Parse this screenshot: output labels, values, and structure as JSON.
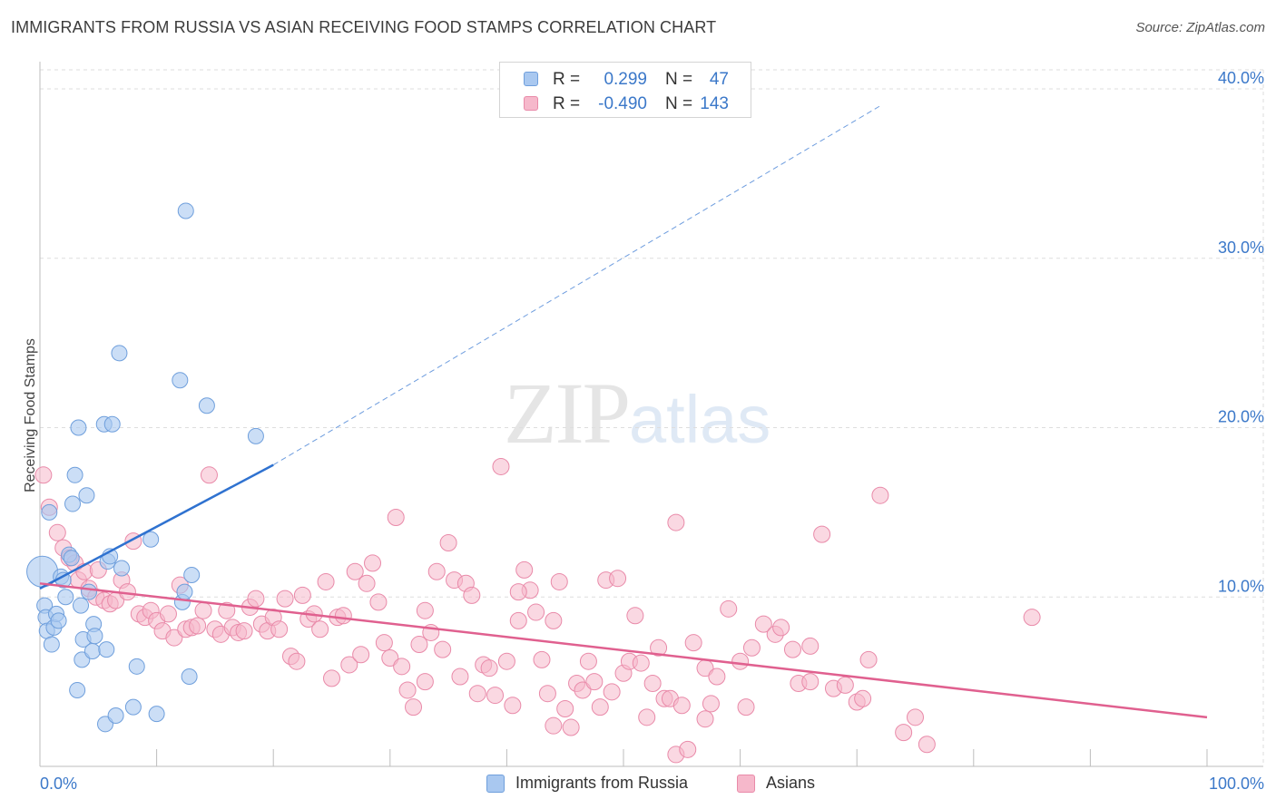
{
  "header": {
    "title": "IMMIGRANTS FROM RUSSIA VS ASIAN RECEIVING FOOD STAMPS CORRELATION CHART",
    "source": "Source: ZipAtlas.com"
  },
  "watermark": {
    "zip": "ZIP",
    "atlas": "atlas"
  },
  "legend_top": [
    {
      "r_label": "R =",
      "r_value": "0.299",
      "n_label": "N =",
      "n_value": "47"
    },
    {
      "r_label": "R =",
      "r_value": "-0.490",
      "n_label": "N =",
      "n_value": "143"
    }
  ],
  "colors": {
    "russia_fill": "#a9c8f0",
    "russia_stroke": "#6f9fdc",
    "russia_line": "#2f72d0",
    "asian_fill": "#f6b8cb",
    "asian_stroke": "#e98aa9",
    "asian_line": "#e0608f",
    "tick_label": "#3b78c9",
    "grid": "#dedede"
  },
  "chart_data": {
    "type": "scatter",
    "title": "IMMIGRANTS FROM RUSSIA VS ASIAN RECEIVING FOOD STAMPS CORRELATION CHART",
    "xlabel": "",
    "ylabel": "Receiving Food Stamps",
    "xlim": [
      0,
      100
    ],
    "ylim": [
      0,
      40
    ],
    "x_tick_labels": [
      "0.0%",
      "100.0%"
    ],
    "y_ticks": [
      10,
      20,
      30,
      40
    ],
    "y_tick_labels": [
      "10.0%",
      "20.0%",
      "30.0%",
      "40.0%"
    ],
    "grid": true,
    "legend_position": "bottom",
    "series": [
      {
        "name": "Immigrants from Russia",
        "r": 0.299,
        "n": 47,
        "trend": {
          "x": [
            0,
            20
          ],
          "y": [
            10.5,
            17.8
          ]
        },
        "trend_extended": {
          "x": [
            20,
            72
          ],
          "y": [
            17.8,
            39.0
          ]
        },
        "points": [
          [
            0.2,
            11.5
          ],
          [
            0.4,
            9.5
          ],
          [
            0.5,
            8.8
          ],
          [
            0.6,
            8.0
          ],
          [
            0.8,
            15.0
          ],
          [
            1.0,
            7.2
          ],
          [
            1.2,
            8.2
          ],
          [
            1.4,
            9.0
          ],
          [
            1.6,
            8.6
          ],
          [
            1.8,
            11.2
          ],
          [
            2.0,
            11.0
          ],
          [
            2.2,
            10.0
          ],
          [
            2.5,
            12.5
          ],
          [
            2.7,
            12.3
          ],
          [
            2.8,
            15.5
          ],
          [
            3.0,
            17.2
          ],
          [
            3.2,
            4.5
          ],
          [
            3.3,
            20.0
          ],
          [
            3.5,
            9.5
          ],
          [
            3.7,
            7.5
          ],
          [
            3.6,
            6.3
          ],
          [
            4.0,
            16.0
          ],
          [
            4.2,
            10.3
          ],
          [
            4.5,
            6.8
          ],
          [
            4.6,
            8.4
          ],
          [
            4.7,
            7.7
          ],
          [
            5.5,
            20.2
          ],
          [
            5.8,
            12.1
          ],
          [
            5.7,
            6.9
          ],
          [
            5.6,
            2.5
          ],
          [
            6.0,
            12.4
          ],
          [
            6.2,
            20.2
          ],
          [
            6.5,
            3.0
          ],
          [
            6.8,
            24.4
          ],
          [
            7.0,
            11.7
          ],
          [
            8.0,
            3.5
          ],
          [
            8.3,
            5.9
          ],
          [
            9.5,
            13.4
          ],
          [
            10.0,
            3.1
          ],
          [
            12.0,
            22.8
          ],
          [
            12.2,
            9.7
          ],
          [
            12.4,
            10.3
          ],
          [
            12.5,
            32.8
          ],
          [
            12.8,
            5.3
          ],
          [
            13.0,
            11.3
          ],
          [
            14.3,
            21.3
          ],
          [
            18.5,
            19.5
          ]
        ]
      },
      {
        "name": "Asians",
        "r": -0.49,
        "n": 143,
        "trend": {
          "x": [
            0,
            100
          ],
          "y": [
            10.8,
            2.9
          ]
        },
        "points": [
          [
            0.3,
            17.2
          ],
          [
            0.8,
            15.3
          ],
          [
            1.5,
            13.8
          ],
          [
            2.0,
            12.9
          ],
          [
            2.5,
            12.3
          ],
          [
            3.0,
            12.0
          ],
          [
            3.3,
            11.0
          ],
          [
            3.8,
            11.5
          ],
          [
            4.2,
            10.5
          ],
          [
            4.8,
            10.0
          ],
          [
            5.0,
            11.6
          ],
          [
            5.5,
            9.8
          ],
          [
            6.0,
            9.6
          ],
          [
            6.5,
            9.8
          ],
          [
            7.0,
            11.0
          ],
          [
            7.5,
            10.3
          ],
          [
            8.0,
            13.3
          ],
          [
            8.5,
            9.0
          ],
          [
            9.0,
            8.8
          ],
          [
            9.5,
            9.2
          ],
          [
            10.0,
            8.6
          ],
          [
            10.5,
            8.0
          ],
          [
            11.0,
            9.0
          ],
          [
            11.5,
            7.6
          ],
          [
            12.0,
            10.7
          ],
          [
            12.5,
            8.1
          ],
          [
            13.0,
            8.2
          ],
          [
            13.5,
            8.3
          ],
          [
            14.0,
            9.2
          ],
          [
            14.5,
            17.2
          ],
          [
            15.0,
            8.1
          ],
          [
            15.5,
            7.8
          ],
          [
            16.0,
            9.2
          ],
          [
            16.5,
            8.2
          ],
          [
            17.0,
            7.9
          ],
          [
            17.5,
            8.0
          ],
          [
            18.0,
            9.4
          ],
          [
            18.5,
            9.9
          ],
          [
            19.0,
            8.4
          ],
          [
            19.5,
            8.0
          ],
          [
            20.0,
            8.8
          ],
          [
            20.5,
            8.1
          ],
          [
            21.0,
            9.9
          ],
          [
            21.5,
            6.5
          ],
          [
            22.0,
            6.2
          ],
          [
            22.5,
            10.1
          ],
          [
            23.0,
            8.7
          ],
          [
            23.5,
            9.0
          ],
          [
            24.0,
            8.1
          ],
          [
            24.5,
            10.9
          ],
          [
            25.0,
            5.2
          ],
          [
            25.5,
            8.8
          ],
          [
            26.0,
            8.9
          ],
          [
            26.5,
            6.0
          ],
          [
            27.0,
            11.5
          ],
          [
            27.5,
            6.6
          ],
          [
            28.0,
            10.8
          ],
          [
            28.5,
            12.0
          ],
          [
            29.0,
            9.7
          ],
          [
            29.5,
            7.3
          ],
          [
            30.0,
            6.4
          ],
          [
            30.5,
            14.7
          ],
          [
            31.0,
            5.9
          ],
          [
            31.5,
            4.5
          ],
          [
            32.0,
            3.5
          ],
          [
            32.5,
            7.2
          ],
          [
            33.0,
            5.0
          ],
          [
            33.5,
            7.9
          ],
          [
            34.0,
            11.5
          ],
          [
            34.5,
            6.9
          ],
          [
            35.0,
            13.2
          ],
          [
            35.5,
            11.0
          ],
          [
            36.0,
            5.3
          ],
          [
            36.5,
            10.8
          ],
          [
            37.0,
            10.1
          ],
          [
            37.5,
            4.3
          ],
          [
            38.0,
            6.0
          ],
          [
            38.5,
            5.8
          ],
          [
            39.0,
            4.2
          ],
          [
            39.5,
            17.7
          ],
          [
            40.0,
            6.2
          ],
          [
            40.5,
            3.6
          ],
          [
            41.0,
            8.6
          ],
          [
            41.5,
            11.6
          ],
          [
            42.0,
            10.4
          ],
          [
            42.5,
            9.1
          ],
          [
            43.0,
            6.3
          ],
          [
            43.5,
            4.3
          ],
          [
            44.0,
            8.6
          ],
          [
            44.5,
            10.9
          ],
          [
            45.0,
            3.4
          ],
          [
            45.5,
            2.3
          ],
          [
            46.0,
            4.9
          ],
          [
            46.5,
            4.5
          ],
          [
            47.0,
            6.2
          ],
          [
            47.5,
            5.0
          ],
          [
            48.0,
            3.5
          ],
          [
            48.5,
            11.0
          ],
          [
            49.0,
            4.4
          ],
          [
            49.5,
            11.1
          ],
          [
            50.0,
            5.5
          ],
          [
            50.5,
            6.2
          ],
          [
            51.0,
            8.9
          ],
          [
            51.5,
            6.1
          ],
          [
            52.0,
            2.9
          ],
          [
            52.5,
            4.9
          ],
          [
            53.0,
            7.0
          ],
          [
            53.5,
            4.0
          ],
          [
            54.0,
            4.0
          ],
          [
            54.5,
            14.4
          ],
          [
            55.0,
            3.6
          ],
          [
            56.0,
            7.3
          ],
          [
            57.0,
            5.8
          ],
          [
            58.0,
            5.3
          ],
          [
            59.0,
            9.3
          ],
          [
            60.0,
            6.2
          ],
          [
            60.5,
            3.5
          ],
          [
            61.0,
            7.0
          ],
          [
            62.0,
            8.4
          ],
          [
            63.0,
            7.8
          ],
          [
            63.5,
            8.2
          ],
          [
            64.5,
            6.9
          ],
          [
            65.0,
            4.9
          ],
          [
            66.0,
            7.1
          ],
          [
            67.0,
            13.7
          ],
          [
            68.0,
            4.6
          ],
          [
            69.0,
            4.8
          ],
          [
            70.0,
            3.8
          ],
          [
            71.0,
            6.3
          ],
          [
            72.0,
            16.0
          ],
          [
            74.0,
            2.0
          ],
          [
            75.0,
            2.9
          ],
          [
            76.0,
            1.3
          ],
          [
            85.0,
            8.8
          ],
          [
            57.5,
            3.7
          ],
          [
            54.5,
            0.7
          ],
          [
            44.0,
            2.4
          ],
          [
            41.0,
            10.3
          ],
          [
            55.5,
            1.0
          ],
          [
            70.5,
            4.0
          ],
          [
            33.0,
            9.2
          ],
          [
            57.0,
            2.8
          ],
          [
            66.0,
            5.0
          ]
        ]
      }
    ]
  }
}
